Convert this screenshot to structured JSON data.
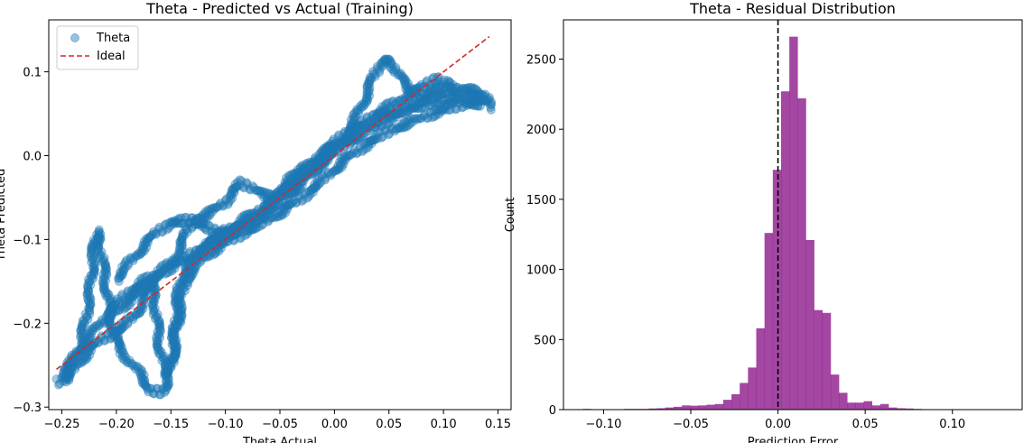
{
  "chart_data": [
    {
      "type": "scatter",
      "title": "Theta - Predicted vs Actual (Training)",
      "xlabel": "Theta Actual",
      "ylabel": "Theta Predicted",
      "xlim": [
        -0.262,
        0.162
      ],
      "ylim": [
        -0.303,
        0.162
      ],
      "xticks": [
        -0.25,
        -0.2,
        -0.15,
        -0.1,
        -0.05,
        0.0,
        0.05,
        0.1,
        0.15
      ],
      "xtick_labels": [
        "−0.25",
        "−0.20",
        "−0.15",
        "−0.10",
        "−0.05",
        "0.00",
        "0.05",
        "0.10",
        "0.15"
      ],
      "yticks": [
        -0.3,
        -0.2,
        -0.1,
        0.0,
        0.1
      ],
      "ytick_labels": [
        "−0.3",
        "−0.2",
        "−0.1",
        "0.0",
        "0.1"
      ],
      "legend": {
        "position": "top-left",
        "entries": [
          {
            "label": "Theta",
            "marker": "circle",
            "color": "#1f77b4"
          },
          {
            "label": "Ideal",
            "style": "dashed",
            "color": "#d62728"
          }
        ]
      },
      "ideal_line": {
        "x": [
          -0.255,
          0.142
        ],
        "y": [
          -0.255,
          0.142
        ],
        "color": "#d62728"
      },
      "scatter_color": "#1f77b4",
      "series_paths": [
        [
          [
            -0.255,
            -0.27
          ],
          [
            -0.245,
            -0.262
          ],
          [
            -0.238,
            -0.245
          ],
          [
            -0.232,
            -0.22
          ],
          [
            -0.228,
            -0.195
          ],
          [
            -0.224,
            -0.16
          ],
          [
            -0.222,
            -0.13
          ],
          [
            -0.22,
            -0.105
          ],
          [
            -0.218,
            -0.092
          ],
          [
            -0.216,
            -0.098
          ],
          [
            -0.214,
            -0.115
          ],
          [
            -0.211,
            -0.14
          ],
          [
            -0.208,
            -0.17
          ],
          [
            -0.205,
            -0.195
          ],
          [
            -0.202,
            -0.212
          ],
          [
            -0.198,
            -0.228
          ],
          [
            -0.192,
            -0.238
          ],
          [
            -0.186,
            -0.248
          ],
          [
            -0.18,
            -0.258
          ],
          [
            -0.174,
            -0.27
          ],
          [
            -0.168,
            -0.28
          ],
          [
            -0.16,
            -0.282
          ],
          [
            -0.155,
            -0.276
          ],
          [
            -0.151,
            -0.258
          ],
          [
            -0.148,
            -0.232
          ],
          [
            -0.146,
            -0.2
          ],
          [
            -0.144,
            -0.17
          ],
          [
            -0.14,
            -0.145
          ],
          [
            -0.134,
            -0.13
          ],
          [
            -0.124,
            -0.115
          ],
          [
            -0.112,
            -0.1
          ],
          [
            -0.1,
            -0.09
          ],
          [
            -0.088,
            -0.08
          ],
          [
            -0.075,
            -0.07
          ],
          [
            -0.06,
            -0.058
          ],
          [
            -0.045,
            -0.04
          ],
          [
            -0.03,
            -0.018
          ],
          [
            -0.015,
            0.0
          ],
          [
            0.0,
            0.015
          ],
          [
            0.012,
            0.03
          ],
          [
            0.022,
            0.05
          ],
          [
            0.03,
            0.075
          ],
          [
            0.036,
            0.095
          ],
          [
            0.041,
            0.108
          ],
          [
            0.046,
            0.115
          ],
          [
            0.052,
            0.112
          ],
          [
            0.058,
            0.1
          ],
          [
            0.064,
            0.085
          ],
          [
            0.072,
            0.075
          ],
          [
            0.082,
            0.07
          ],
          [
            0.095,
            0.072
          ],
          [
            0.105,
            0.078
          ],
          [
            0.115,
            0.08
          ],
          [
            0.125,
            0.078
          ],
          [
            0.133,
            0.076
          ],
          [
            0.138,
            0.072
          ],
          [
            0.141,
            0.064
          ],
          [
            0.142,
            0.055
          ]
        ],
        [
          [
            -0.25,
            -0.262
          ],
          [
            -0.24,
            -0.244
          ],
          [
            -0.228,
            -0.222
          ],
          [
            -0.215,
            -0.2
          ],
          [
            -0.2,
            -0.178
          ],
          [
            -0.188,
            -0.162
          ],
          [
            -0.175,
            -0.15
          ],
          [
            -0.16,
            -0.14
          ],
          [
            -0.145,
            -0.13
          ],
          [
            -0.132,
            -0.118
          ],
          [
            -0.118,
            -0.108
          ],
          [
            -0.102,
            -0.098
          ],
          [
            -0.085,
            -0.085
          ],
          [
            -0.068,
            -0.072
          ],
          [
            -0.052,
            -0.058
          ],
          [
            -0.04,
            -0.045
          ],
          [
            -0.028,
            -0.03
          ],
          [
            -0.015,
            -0.012
          ],
          [
            -0.002,
            0.002
          ],
          [
            0.012,
            0.015
          ],
          [
            0.028,
            0.028
          ],
          [
            0.045,
            0.04
          ],
          [
            0.062,
            0.052
          ],
          [
            0.078,
            0.064
          ],
          [
            0.092,
            0.078
          ],
          [
            0.1,
            0.088
          ],
          [
            0.108,
            0.08
          ],
          [
            0.118,
            0.072
          ],
          [
            0.13,
            0.068
          ],
          [
            0.14,
            0.064
          ]
        ],
        [
          [
            -0.245,
            -0.268
          ],
          [
            -0.236,
            -0.25
          ],
          [
            -0.225,
            -0.232
          ],
          [
            -0.212,
            -0.218
          ],
          [
            -0.2,
            -0.21
          ],
          [
            -0.19,
            -0.2
          ],
          [
            -0.18,
            -0.185
          ],
          [
            -0.172,
            -0.165
          ],
          [
            -0.168,
            -0.15
          ],
          [
            -0.165,
            -0.17
          ],
          [
            -0.163,
            -0.195
          ],
          [
            -0.161,
            -0.22
          ],
          [
            -0.158,
            -0.245
          ],
          [
            -0.154,
            -0.262
          ],
          [
            -0.15,
            -0.255
          ],
          [
            -0.147,
            -0.232
          ],
          [
            -0.144,
            -0.205
          ],
          [
            -0.141,
            -0.175
          ],
          [
            -0.137,
            -0.152
          ],
          [
            -0.131,
            -0.138
          ],
          [
            -0.122,
            -0.125
          ],
          [
            -0.11,
            -0.112
          ],
          [
            -0.095,
            -0.1
          ],
          [
            -0.08,
            -0.09
          ],
          [
            -0.065,
            -0.08
          ],
          [
            -0.05,
            -0.068
          ],
          [
            -0.035,
            -0.055
          ],
          [
            -0.02,
            -0.04
          ],
          [
            -0.005,
            -0.022
          ],
          [
            0.01,
            -0.005
          ],
          [
            0.025,
            0.01
          ],
          [
            0.04,
            0.022
          ],
          [
            0.055,
            0.032
          ],
          [
            0.07,
            0.04
          ],
          [
            0.085,
            0.048
          ],
          [
            0.1,
            0.055
          ],
          [
            0.115,
            0.06
          ],
          [
            0.128,
            0.063
          ],
          [
            0.138,
            0.062
          ]
        ],
        [
          [
            -0.205,
            -0.19
          ],
          [
            -0.19,
            -0.175
          ],
          [
            -0.175,
            -0.158
          ],
          [
            -0.162,
            -0.142
          ],
          [
            -0.15,
            -0.128
          ],
          [
            -0.142,
            -0.112
          ],
          [
            -0.138,
            -0.1
          ],
          [
            -0.135,
            -0.085
          ],
          [
            -0.13,
            -0.08
          ],
          [
            -0.12,
            -0.082
          ],
          [
            -0.108,
            -0.09
          ],
          [
            -0.095,
            -0.092
          ],
          [
            -0.08,
            -0.082
          ],
          [
            -0.066,
            -0.068
          ],
          [
            -0.055,
            -0.05
          ],
          [
            -0.045,
            -0.032
          ],
          [
            -0.032,
            -0.02
          ],
          [
            -0.018,
            -0.01
          ],
          [
            -0.005,
            0.005
          ],
          [
            0.01,
            0.02
          ],
          [
            0.025,
            0.035
          ],
          [
            0.04,
            0.045
          ],
          [
            0.055,
            0.052
          ],
          [
            0.072,
            0.058
          ],
          [
            0.09,
            0.062
          ],
          [
            0.105,
            0.066
          ],
          [
            0.12,
            0.068
          ],
          [
            0.133,
            0.07
          ]
        ],
        [
          [
            -0.2,
            -0.148
          ],
          [
            -0.188,
            -0.128
          ],
          [
            -0.175,
            -0.108
          ],
          [
            -0.162,
            -0.09
          ],
          [
            -0.15,
            -0.08
          ],
          [
            -0.14,
            -0.078
          ],
          [
            -0.13,
            -0.076
          ],
          [
            -0.12,
            -0.072
          ],
          [
            -0.11,
            -0.065
          ],
          [
            -0.1,
            -0.055
          ],
          [
            -0.092,
            -0.04
          ],
          [
            -0.085,
            -0.032
          ],
          [
            -0.075,
            -0.04
          ],
          [
            -0.062,
            -0.048
          ],
          [
            -0.05,
            -0.05
          ],
          [
            -0.04,
            -0.038
          ],
          [
            -0.032,
            -0.028
          ],
          [
            -0.02,
            -0.018
          ],
          [
            -0.01,
            -0.006
          ],
          [
            0.0,
            0.008
          ],
          [
            0.012,
            0.022
          ],
          [
            0.025,
            0.038
          ],
          [
            0.038,
            0.05
          ],
          [
            0.052,
            0.06
          ],
          [
            0.065,
            0.07
          ],
          [
            0.078,
            0.08
          ],
          [
            0.09,
            0.09
          ],
          [
            0.095,
            0.092
          ]
        ]
      ]
    },
    {
      "type": "bar",
      "title": "Theta - Residual Distribution",
      "xlabel": "Prediction Error",
      "ylabel": "Count",
      "xlim": [
        -0.123,
        0.14
      ],
      "ylim": [
        0,
        2780
      ],
      "xticks": [
        -0.1,
        -0.05,
        0.0,
        0.05,
        0.1
      ],
      "xtick_labels": [
        "−0.10",
        "−0.05",
        "0.00",
        "0.05",
        "0.10"
      ],
      "yticks": [
        0,
        500,
        1000,
        1500,
        2000,
        2500
      ],
      "ytick_labels": [
        "0",
        "500",
        "1000",
        "1500",
        "2000",
        "2500"
      ],
      "bar_color": "#800080",
      "vline": {
        "x": 0.0,
        "color": "#000000",
        "style": "dashed"
      },
      "bin_start": -0.112,
      "bin_width": 0.00474,
      "counts": [
        5,
        0,
        0,
        0,
        0,
        5,
        5,
        5,
        8,
        10,
        15,
        20,
        30,
        28,
        30,
        35,
        40,
        70,
        110,
        190,
        300,
        580,
        1260,
        1710,
        2270,
        2660,
        2220,
        1210,
        710,
        690,
        250,
        120,
        50,
        50,
        60,
        30,
        40,
        15,
        10,
        8,
        5,
        3,
        0,
        0,
        0,
        0,
        0,
        0,
        0,
        0,
        2
      ]
    }
  ]
}
